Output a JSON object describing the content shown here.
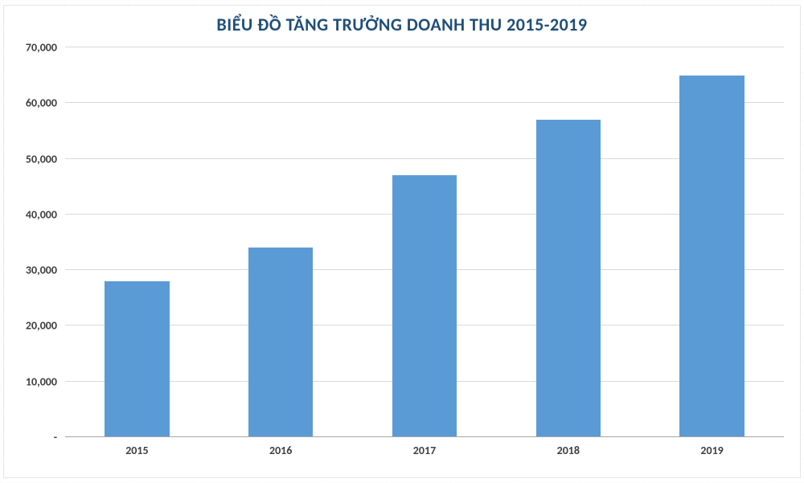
{
  "chart": {
    "type": "bar",
    "title": "BIỂU ĐỒ TĂNG TRƯỞNG DOANH THU 2015-2019",
    "title_color": "#1f4e79",
    "title_fontsize": 22,
    "title_fontweight": 700,
    "categories": [
      "2015",
      "2016",
      "2017",
      "2018",
      "2019"
    ],
    "values": [
      28000,
      34000,
      47000,
      57000,
      65000
    ],
    "bar_color": "#5b9bd5",
    "bar_width_rel": 0.45,
    "background_color": "#ffffff",
    "grid_color": "#d9d9d9",
    "baseline_color": "#a6a6a6",
    "y": {
      "min": 0,
      "max": 70000,
      "tick_step": 10000,
      "tick_labels": [
        "-",
        "10,000",
        "20,000",
        "30,000",
        "40,000",
        "50,000",
        "60,000",
        "70,000"
      ],
      "label_color": "#404040",
      "label_fontsize": 14,
      "label_fontweight": 700
    },
    "x": {
      "label_color": "#404040",
      "label_fontsize": 14,
      "label_fontweight": 700
    },
    "chart_border_color": "#e6e6e6"
  }
}
